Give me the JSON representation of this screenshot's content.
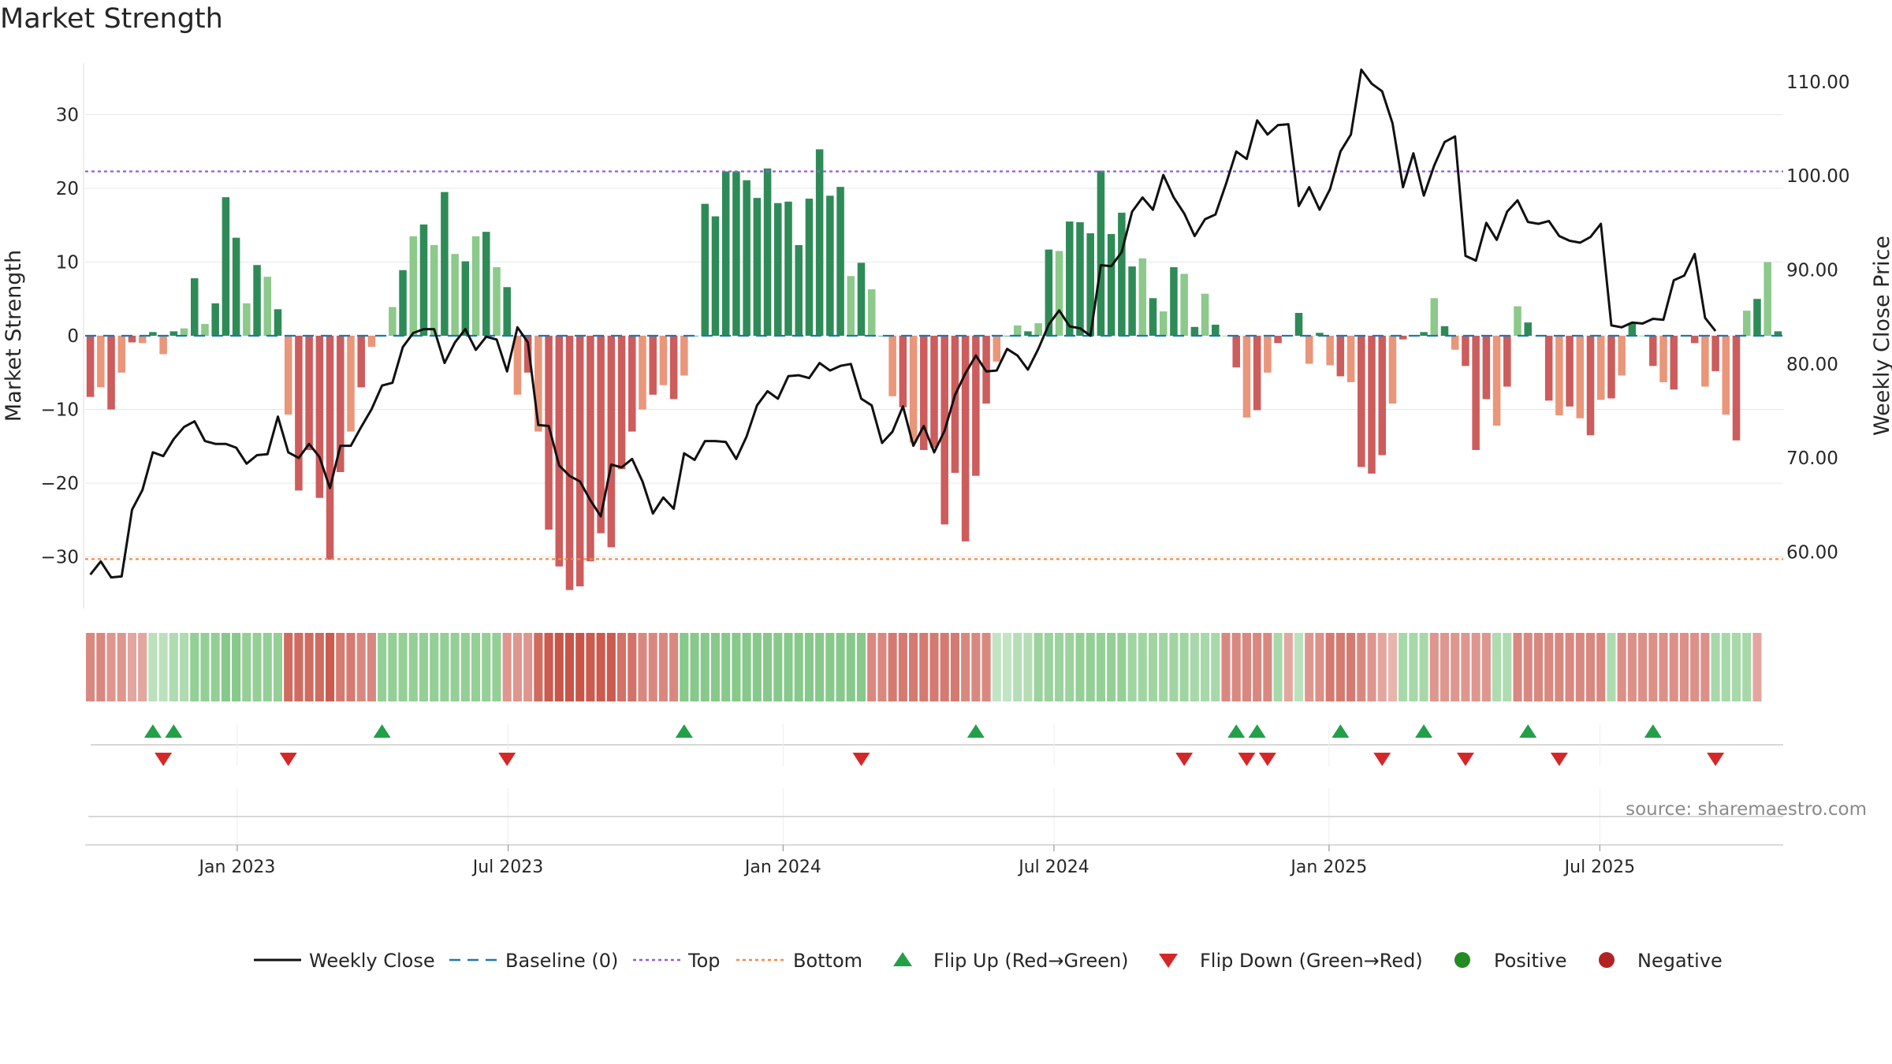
{
  "chart_data": {
    "type": "bar+line",
    "title": "Market Strength",
    "ylabel_left": "Market Strength",
    "ylabel_right": "Weekly Close Price",
    "left_ylim": [
      -37,
      37
    ],
    "left_yticks": [
      30,
      20,
      10,
      0,
      -10,
      -20,
      -30
    ],
    "right_ylim": [
      54,
      112
    ],
    "right_yticks": [
      110,
      100,
      90,
      80,
      70,
      60
    ],
    "right_tick_labels": [
      "110.00",
      "100.00",
      "90.00",
      "80.00",
      "70.00",
      "60.00"
    ],
    "x_tick_labels": [
      "Jan 2023",
      "Jul 2023",
      "Jan 2024",
      "Jul 2024",
      "Jan 2025",
      "Jul 2025"
    ],
    "x_tick_weeks": [
      14.6,
      40.6,
      67.0,
      93.0,
      119.4,
      145.4
    ],
    "top_level": 22.3,
    "bottom_level": -30.3,
    "strength": [
      -8.3,
      -7,
      -10,
      -5,
      -0.9,
      -1,
      0.5,
      -2.5,
      0.6,
      1,
      7.8,
      1.6,
      4.4,
      18.8,
      13.3,
      4.4,
      9.6,
      8,
      3.6,
      -10.7,
      -21,
      -15.5,
      -22,
      -30.4,
      -18.5,
      -13,
      -7,
      -1.5,
      0,
      3.9,
      8.9,
      13.5,
      15.1,
      12.3,
      19.5,
      11.1,
      10.1,
      13.5,
      14.1,
      9.3,
      6.6,
      -8,
      -5,
      -13,
      -26.3,
      -31.3,
      -34.5,
      -34,
      -30.6,
      -26.8,
      -28.7,
      -18.1,
      -13,
      -10,
      -8,
      -6.7,
      -8.6,
      -5.4,
      0,
      17.9,
      16.2,
      22.3,
      22.3,
      21.1,
      18.7,
      22.7,
      18,
      18.2,
      12.3,
      18.6,
      25.3,
      19,
      20.2,
      8.1,
      9.9,
      6.3,
      0,
      -8.2,
      -9.7,
      -14.5,
      -15.5,
      -15.2,
      -25.6,
      -18.6,
      -27.9,
      -19,
      -9.2,
      -3.5,
      0,
      1.4,
      0.6,
      1.7,
      11.7,
      11.5,
      15.5,
      15.4,
      13.9,
      22.4,
      13.8,
      16.7,
      9.4,
      10.5,
      5.1,
      3.3,
      9.3,
      8.4,
      1.2,
      5.7,
      1.5,
      0,
      -4.3,
      -11.1,
      -10.1,
      -5,
      -1,
      0,
      3.1,
      -3.8,
      0.4,
      -4,
      -5.5,
      -6.3,
      -17.8,
      -18.7,
      -16.2,
      -9.2,
      -0.5,
      0,
      0.5,
      5.1,
      1.3,
      -1.9,
      -4.1,
      -15.5,
      -8.6,
      -12.2,
      -6.9,
      4,
      1.8,
      0,
      -8.8,
      -10.8,
      -9.6,
      -11.2,
      -13.5,
      -8.7,
      -8.5,
      -5.4,
      1.7,
      0,
      -4.1,
      -6.3,
      -7.3,
      0,
      -1,
      -6.9,
      -4.8,
      -10.7,
      -14.2,
      3.4,
      5,
      10,
      0.6
    ],
    "weekly_close": [
      57.6,
      59,
      57.3,
      57.4,
      64.5,
      66.6,
      70.6,
      70.2,
      72,
      73.3,
      73.9,
      71.8,
      71.5,
      71.5,
      71.1,
      69.4,
      70.3,
      70.4,
      74.4,
      70.6,
      70,
      71.5,
      70.1,
      66.8,
      71.3,
      71.3,
      73.3,
      75.2,
      77.7,
      78,
      81.8,
      83.3,
      83.7,
      83.7,
      80.1,
      82.3,
      83.7,
      81.5,
      82.9,
      82.6,
      79.2,
      83.9,
      82.3,
      73.5,
      73.4,
      69.2,
      68.1,
      67.5,
      65.5,
      63.8,
      69.3,
      69,
      69.9,
      67.5,
      64.1,
      65.8,
      64.6,
      70.5,
      69.8,
      71.8,
      71.8,
      71.7,
      69.9,
      72.3,
      75.6,
      77.1,
      76.3,
      78.7,
      78.8,
      78.5,
      80.1,
      79.3,
      79.8,
      80,
      76.3,
      75.6,
      71.6,
      72.8,
      75.5,
      71.3,
      73.4,
      70.6,
      72.9,
      76.7,
      79,
      80.9,
      79.2,
      79.3,
      81.6,
      80.9,
      79.4,
      81.6,
      84.2,
      85.7,
      84,
      83.8,
      83,
      90.5,
      90.4,
      91.9,
      96.2,
      97.7,
      96.4,
      100.1,
      97.7,
      96,
      93.6,
      95.4,
      95.9,
      99.1,
      102.6,
      101.8,
      105.9,
      104.4,
      105.4,
      105.5,
      96.8,
      98.8,
      96.4,
      98.6,
      102.6,
      104.4,
      111.3,
      109.8,
      109,
      105.6,
      98.8,
      102.4,
      97.9,
      101.1,
      103.6,
      104.2,
      91.5,
      91,
      95,
      93.2,
      96.2,
      97.4,
      95.1,
      94.9,
      95.2,
      93.6,
      93.1,
      92.9,
      93.5,
      94.9,
      84.1,
      83.9,
      84.4,
      84.3,
      84.8,
      84.7,
      88.9,
      89.4,
      91.7,
      84.9,
      83.5
    ],
    "weekly_state": [
      -0.6,
      -0.6,
      -0.5,
      -0.5,
      -0.4,
      -0.4,
      0.3,
      0.3,
      0.4,
      0.4,
      0.6,
      0.6,
      0.6,
      0.7,
      0.7,
      0.6,
      0.6,
      0.6,
      0.6,
      -0.8,
      -0.8,
      -0.8,
      -0.8,
      -0.9,
      -0.7,
      -0.7,
      -0.6,
      -0.6,
      0.6,
      0.6,
      0.6,
      0.6,
      0.6,
      0.6,
      0.6,
      0.6,
      0.6,
      0.6,
      0.6,
      0.6,
      -0.5,
      -0.5,
      -0.5,
      -0.8,
      -0.9,
      -0.95,
      -0.95,
      -0.95,
      -0.9,
      -0.9,
      -0.9,
      -0.75,
      -0.75,
      -0.6,
      -0.6,
      -0.6,
      -0.6,
      0.7,
      0.7,
      0.7,
      0.7,
      0.7,
      0.7,
      0.7,
      0.7,
      0.7,
      0.7,
      0.7,
      0.7,
      0.7,
      0.7,
      0.7,
      0.7,
      0.7,
      0.7,
      -0.6,
      -0.6,
      -0.7,
      -0.7,
      -0.7,
      -0.7,
      -0.7,
      -0.7,
      -0.7,
      -0.6,
      -0.6,
      -0.6,
      0.25,
      0.25,
      0.35,
      0.35,
      0.55,
      0.55,
      0.55,
      0.55,
      0.6,
      0.6,
      0.6,
      0.6,
      0.6,
      0.5,
      0.5,
      0.5,
      0.5,
      0.5,
      0.5,
      0.45,
      0.45,
      0.45,
      -0.6,
      -0.6,
      -0.6,
      -0.6,
      -0.6,
      0.45,
      -0.4,
      0.3,
      -0.5,
      -0.55,
      -0.7,
      -0.7,
      -0.7,
      -0.6,
      -0.5,
      -0.4,
      -0.3,
      0.45,
      0.45,
      0.45,
      -0.5,
      -0.5,
      -0.5,
      -0.5,
      -0.5,
      -0.5,
      0.4,
      0.4,
      -0.6,
      -0.6,
      -0.6,
      -0.6,
      -0.6,
      -0.6,
      -0.6,
      -0.6,
      -0.6,
      0.4,
      -0.55,
      -0.55,
      -0.55,
      -0.55,
      -0.55,
      -0.55,
      -0.55,
      -0.55,
      -0.55,
      0.45,
      0.45,
      0.45,
      0.45,
      -0.4
    ],
    "flip_up_weeks": [
      6,
      8,
      28,
      57,
      85,
      110,
      112,
      120,
      128,
      138,
      150
    ],
    "flip_down_weeks": [
      7,
      19,
      40,
      74,
      105,
      111,
      113,
      124,
      132,
      141,
      156
    ],
    "source": "source: sharemaestro.com",
    "legend": [
      "Weekly Close",
      "Baseline (0)",
      "Top",
      "Bottom",
      "Flip Up (Red→Green)",
      "Flip Down (Green→Red)",
      "Positive",
      "Negative"
    ],
    "colors": {
      "pos_strong": "#2e8b57",
      "pos_light": "#8cc98a",
      "neg_strong": "#cd5c5c",
      "neg_light": "#e9967a",
      "line": "#111111",
      "baseline": "#1f77b4",
      "top": "#9b59d6",
      "bottom": "#f28c45",
      "flip_up": "#22a047",
      "flip_down": "#d62728",
      "positive_dot": "#228b22",
      "negative_dot": "#b22222",
      "grid": "#e8e8e8",
      "axis": "#cccccc"
    }
  }
}
